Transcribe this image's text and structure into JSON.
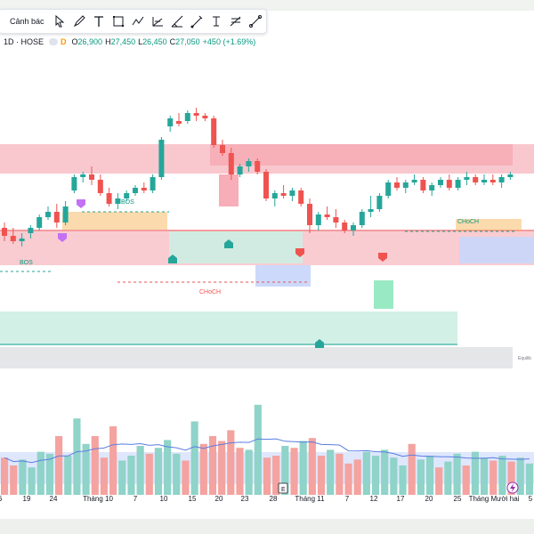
{
  "toolbar": {
    "alert_label": "Cảnh bác",
    "tools": [
      "cursor-icon",
      "brush-icon",
      "text-icon",
      "rectangle-icon",
      "trend-path-icon",
      "pattern-icon",
      "long-position-icon",
      "ruler-icon",
      "anchored-text-icon",
      "fib-icon",
      "line-icon"
    ]
  },
  "legend": {
    "symbol": "1D · HOSE",
    "interval_badge": "D",
    "open_label": "O",
    "open": "26,900",
    "high_label": "H",
    "high": "27,450",
    "low_label": "L",
    "low": "26,450",
    "close_label": "C",
    "close": "27,050",
    "change": "+450 (+1.69%)"
  },
  "annotations": {
    "bos_left": "BOS",
    "bos_mid": "BOS",
    "choch_mid": "CHoCH",
    "choch_right": "CHoCH",
    "equilibrium": "Equilib",
    "event_marker": "E"
  },
  "xaxis_labels": [
    "6",
    "19",
    "24",
    "Tháng 10",
    "7",
    "10",
    "15",
    "20",
    "23",
    "28",
    "Tháng 11",
    "7",
    "12",
    "17",
    "20",
    "25",
    "Tháng Mười hai",
    "5"
  ],
  "colors": {
    "up": "#26a69a",
    "down": "#ef5350",
    "supply_zone": "#f7b6bf",
    "demand_zone": "#cdeee3",
    "orderblock_orange": "#fbd7a5",
    "orderblock_blue": "#c9d7fb",
    "volume_ma": "#5b7ee0"
  },
  "chart_data": {
    "type": "candlestick",
    "interval": "1D",
    "exchange": "HOSE",
    "last_bar": {
      "open": 26900,
      "high": 27450,
      "low": 26450,
      "close": 27050,
      "change": 450,
      "change_pct": 1.69
    },
    "ohlc_relative": [
      [
        50,
        52,
        45,
        47
      ],
      [
        47,
        50,
        44,
        45
      ],
      [
        45,
        48,
        43,
        46
      ],
      [
        48,
        51,
        46,
        50
      ],
      [
        50,
        55,
        49,
        54
      ],
      [
        54,
        58,
        53,
        56
      ],
      [
        56,
        59,
        50,
        52
      ],
      [
        52,
        60,
        51,
        58
      ],
      [
        64,
        70,
        63,
        69
      ],
      [
        69,
        71,
        67,
        70
      ],
      [
        70,
        73,
        66,
        68
      ],
      [
        68,
        70,
        62,
        63
      ],
      [
        63,
        65,
        58,
        59
      ],
      [
        59,
        63,
        57,
        61
      ],
      [
        61,
        64,
        60,
        63
      ],
      [
        63,
        66,
        62,
        65
      ],
      [
        65,
        67,
        63,
        64
      ],
      [
        64,
        70,
        63,
        69
      ],
      [
        69,
        84,
        68,
        83
      ],
      [
        88,
        92,
        86,
        91
      ],
      [
        90,
        93,
        88,
        89
      ],
      [
        90,
        94,
        89,
        93
      ],
      [
        93,
        95,
        90,
        92
      ],
      [
        92,
        93,
        90,
        91
      ],
      [
        91,
        92,
        80,
        81
      ],
      [
        81,
        83,
        77,
        78
      ],
      [
        78,
        80,
        68,
        70
      ],
      [
        70,
        74,
        69,
        73
      ],
      [
        73,
        76,
        71,
        75
      ],
      [
        75,
        76,
        70,
        71
      ],
      [
        71,
        72,
        60,
        61
      ],
      [
        61,
        64,
        58,
        63
      ],
      [
        63,
        66,
        61,
        62
      ],
      [
        62,
        65,
        60,
        64
      ],
      [
        64,
        65,
        58,
        59
      ],
      [
        59,
        61,
        48,
        51
      ],
      [
        51,
        56,
        49,
        55
      ],
      [
        55,
        58,
        53,
        54
      ],
      [
        54,
        57,
        50,
        52
      ],
      [
        52,
        53,
        48,
        49
      ],
      [
        49,
        52,
        47,
        51
      ],
      [
        51,
        57,
        50,
        56
      ],
      [
        56,
        62,
        54,
        57
      ],
      [
        57,
        63,
        56,
        62
      ],
      [
        62,
        68,
        61,
        67
      ],
      [
        67,
        69,
        64,
        65
      ],
      [
        65,
        68,
        63,
        67
      ],
      [
        67,
        70,
        66,
        68
      ],
      [
        68,
        69,
        63,
        64
      ],
      [
        64,
        67,
        62,
        66
      ],
      [
        66,
        69,
        65,
        68
      ],
      [
        68,
        70,
        64,
        65
      ],
      [
        65,
        69,
        64,
        68
      ],
      [
        68,
        71,
        66,
        69
      ],
      [
        69,
        70,
        66,
        67
      ],
      [
        67,
        70,
        66,
        68
      ],
      [
        68,
        70,
        66,
        67
      ],
      [
        67,
        70,
        65,
        69
      ],
      [
        69,
        71,
        68,
        70
      ]
    ],
    "volume_relative": [
      38,
      30,
      36,
      28,
      44,
      42,
      60,
      40,
      78,
      52,
      60,
      38,
      70,
      35,
      40,
      50,
      42,
      48,
      56,
      42,
      35,
      75,
      52,
      60,
      55,
      66,
      48,
      46,
      92,
      38,
      40,
      50,
      48,
      55,
      58,
      40,
      46,
      42,
      32,
      36,
      44,
      40,
      46,
      38,
      30,
      52,
      36,
      40,
      28,
      34,
      42,
      30,
      44,
      38,
      35,
      40,
      34,
      38,
      32
    ]
  }
}
